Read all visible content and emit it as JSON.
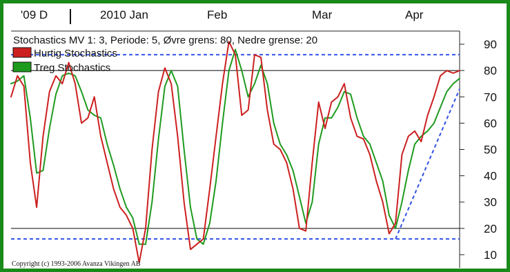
{
  "chart_data": {
    "type": "line",
    "title": "Stochastics MV 1: 3, Periode: 5, Øvre grens: 80, Nedre grense: 20",
    "x_tick_labels": [
      "'09 D",
      "2010 Jan",
      "Feb",
      "Mar",
      "Apr"
    ],
    "y_tick_labels": [
      "90",
      "80",
      "70",
      "60",
      "50",
      "40",
      "30",
      "20",
      "10"
    ],
    "ylim": [
      5,
      95
    ],
    "upper_limit": 80,
    "lower_limit": 20,
    "grid": false,
    "legend_position": "top-left",
    "copyright": "Copyright (c) 1993-2006 Avanza Vikingen AB",
    "series": [
      {
        "name": "Hurtig Stochastics",
        "color": "#cc1f1f",
        "x": [
          0,
          2,
          4,
          6,
          8,
          10,
          12,
          14,
          16,
          18,
          20,
          22,
          24,
          26,
          28,
          30,
          32,
          34,
          36,
          38,
          40,
          42,
          44,
          46,
          48,
          50,
          52,
          54,
          56,
          58,
          60,
          62,
          64,
          66,
          68,
          70,
          72,
          74,
          76,
          78,
          80,
          82,
          84,
          86,
          88,
          90,
          92,
          94,
          96,
          98,
          100,
          102,
          104,
          106,
          108,
          110,
          112,
          114,
          116,
          118,
          120,
          122,
          124,
          126,
          128,
          130,
          132,
          134,
          136,
          138,
          140
        ],
        "values": [
          70,
          78,
          74,
          45,
          28,
          55,
          72,
          78,
          75,
          83,
          75,
          60,
          62,
          70,
          55,
          45,
          35,
          28,
          25,
          20,
          7,
          20,
          50,
          72,
          81,
          75,
          55,
          30,
          12,
          14,
          16,
          35,
          55,
          75,
          91,
          86,
          63,
          65,
          86,
          85,
          65,
          52,
          50,
          45,
          35,
          20,
          19,
          45,
          68,
          58,
          68,
          70,
          75,
          62,
          55,
          54,
          48,
          38,
          30,
          18,
          22,
          48,
          55,
          57,
          53,
          63,
          70,
          78,
          80,
          79,
          80
        ],
        "note": "values are approximate readings; x is a uniform sample index across the visible time range"
      },
      {
        "name": "Treg Stochastics",
        "color": "#1e9a1e",
        "x": [
          0,
          2,
          4,
          6,
          8,
          10,
          12,
          14,
          16,
          18,
          20,
          22,
          24,
          26,
          28,
          30,
          32,
          34,
          36,
          38,
          40,
          42,
          44,
          46,
          48,
          50,
          52,
          54,
          56,
          58,
          60,
          62,
          64,
          66,
          68,
          70,
          72,
          74,
          76,
          78,
          80,
          82,
          84,
          86,
          88,
          90,
          92,
          94,
          96,
          98,
          100,
          102,
          104,
          106,
          108,
          110,
          112,
          114,
          116,
          118,
          120,
          122,
          124,
          126,
          128,
          130,
          132,
          134,
          136,
          138,
          140
        ],
        "values": [
          75,
          76,
          78,
          62,
          41,
          42,
          58,
          71,
          78,
          79,
          78,
          72,
          65,
          63,
          62,
          52,
          44,
          35,
          28,
          24,
          14,
          14,
          30,
          54,
          74,
          80,
          74,
          50,
          28,
          16,
          14,
          22,
          38,
          60,
          80,
          88,
          80,
          70,
          75,
          82,
          75,
          60,
          52,
          48,
          42,
          32,
          22,
          30,
          52,
          62,
          62,
          66,
          72,
          71,
          62,
          55,
          52,
          45,
          38,
          25,
          20,
          30,
          42,
          52,
          55,
          57,
          60,
          66,
          72,
          75,
          77
        ]
      }
    ],
    "trend_lines": [
      {
        "style": "dashed",
        "color": "#3050e8",
        "points": [
          [
            0,
            86
          ],
          [
            140,
            86
          ]
        ]
      },
      {
        "style": "dashed",
        "color": "#3050e8",
        "points": [
          [
            0,
            16
          ],
          [
            140,
            16
          ]
        ]
      },
      {
        "style": "dashed",
        "color": "#3050e8",
        "points": [
          [
            120,
            16
          ],
          [
            140,
            73
          ]
        ]
      }
    ]
  }
}
